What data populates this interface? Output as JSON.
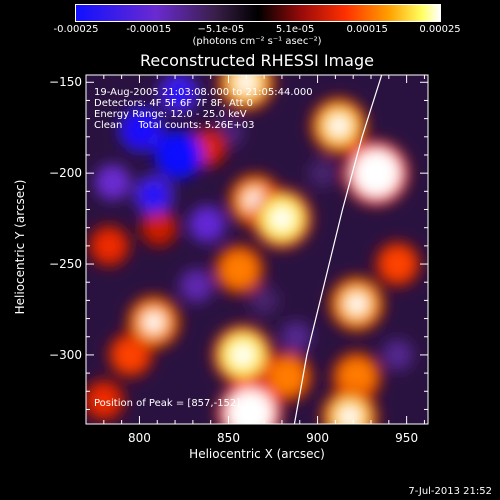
{
  "colorbar": {
    "ticks": [
      "-0.00025",
      "-0.00015",
      "−5.1e-05",
      "5.1e-05",
      "0.00015",
      "0.00025"
    ],
    "tick_values": [
      -0.00025,
      -0.00015,
      -5.1e-05,
      5.1e-05,
      0.00015,
      0.00025
    ],
    "range": [
      -0.00025,
      0.00025
    ],
    "units": "(photons cm⁻² s⁻¹ asec⁻²)",
    "colormap": "blue-purple-black-red-orange-yellow-white"
  },
  "chart_data": {
    "type": "heatmap",
    "title": "Reconstructed RHESSI Image",
    "xlabel": "Heliocentric X (arcsec)",
    "ylabel": "Heliocentric Y (arcsec)",
    "xlim": [
      770,
      962
    ],
    "ylim": [
      -338,
      -146
    ],
    "x_ticks": [
      800,
      850,
      900,
      950
    ],
    "y_ticks": [
      -150,
      -200,
      -250,
      -300
    ],
    "x_tick_labels": [
      "800",
      "850",
      "900",
      "950"
    ],
    "y_tick_labels": [
      "−150",
      "−200",
      "−250",
      "−300"
    ],
    "limb_curve": [
      [
        936,
        -146
      ],
      [
        925,
        -180
      ],
      [
        914,
        -220
      ],
      [
        904,
        -260
      ],
      [
        894,
        -300
      ],
      [
        887,
        -338
      ]
    ],
    "peak_position": [
      857,
      -152
    ],
    "blobs": [
      {
        "x": 933,
        "y": -200,
        "value": 0.00025
      },
      {
        "x": 912,
        "y": -174,
        "value": 0.0002
      },
      {
        "x": 880,
        "y": -225,
        "value": 0.00022
      },
      {
        "x": 860,
        "y": -150,
        "value": 0.0002
      },
      {
        "x": 865,
        "y": -215,
        "value": 0.00018
      },
      {
        "x": 856,
        "y": -253,
        "value": 0.00016
      },
      {
        "x": 858,
        "y": -300,
        "value": 0.00022
      },
      {
        "x": 862,
        "y": -332,
        "value": 0.00025
      },
      {
        "x": 883,
        "y": -312,
        "value": 0.00016
      },
      {
        "x": 922,
        "y": -272,
        "value": 0.00019
      },
      {
        "x": 922,
        "y": -312,
        "value": 0.00016
      },
      {
        "x": 918,
        "y": -334,
        "value": 0.0002
      },
      {
        "x": 945,
        "y": -250,
        "value": 0.00013
      },
      {
        "x": 808,
        "y": -282,
        "value": 0.00018
      },
      {
        "x": 795,
        "y": -300,
        "value": 0.00013
      },
      {
        "x": 783,
        "y": -240,
        "value": 0.00011
      },
      {
        "x": 780,
        "y": -325,
        "value": 0.00011
      },
      {
        "x": 811,
        "y": -230,
        "value": 9e-05
      },
      {
        "x": 838,
        "y": -186,
        "value": 0.0001
      },
      {
        "x": 822,
        "y": -190,
        "value": -0.00025
      },
      {
        "x": 801,
        "y": -176,
        "value": -0.00022
      },
      {
        "x": 822,
        "y": -156,
        "value": -0.00018
      },
      {
        "x": 808,
        "y": -212,
        "value": -0.00018
      },
      {
        "x": 785,
        "y": -205,
        "value": -0.00014
      },
      {
        "x": 838,
        "y": -228,
        "value": -0.00015
      },
      {
        "x": 832,
        "y": -262,
        "value": -0.00012
      },
      {
        "x": 850,
        "y": -178,
        "value": -9e-05
      },
      {
        "x": 888,
        "y": -290,
        "value": -0.0001
      },
      {
        "x": 903,
        "y": -200,
        "value": -8e-05
      },
      {
        "x": 945,
        "y": -300,
        "value": -0.0001
      },
      {
        "x": 870,
        "y": -270,
        "value": -8e-05
      }
    ]
  },
  "annotations": {
    "line1": "19-Aug-2005 21:03:08.000 to 21:05:44.000",
    "line2": "Detectors: 4F 5F 6F 7F 8F, Att 0",
    "line3": "Energy Range: 12.0 - 25.0 keV",
    "line4": "Clean     Total counts: 5.26E+03",
    "peak": "Position of Peak = [857,-152]"
  },
  "timestamp": "7-Jul-2013 21:52"
}
